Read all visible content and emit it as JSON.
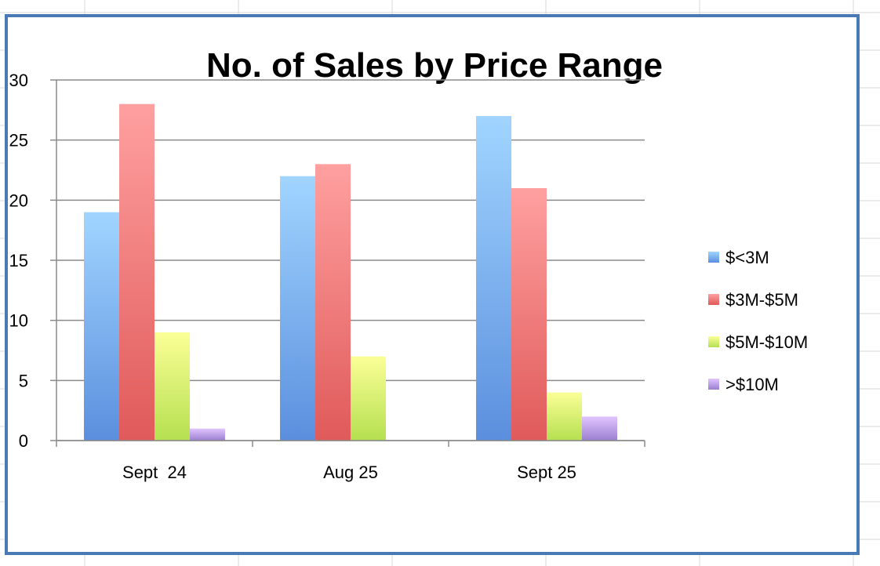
{
  "chart_data": {
    "type": "bar",
    "title": "No. of Sales by Price Range",
    "xlabel": "",
    "ylabel": "",
    "categories": [
      "Sept  24",
      "Aug 25",
      "Sept 25"
    ],
    "series": [
      {
        "name": "$<3M",
        "values": [
          19,
          22,
          27
        ],
        "color": "#5b8fde"
      },
      {
        "name": "$3M-$5M",
        "values": [
          28,
          23,
          21
        ],
        "color": "#e05a5a"
      },
      {
        "name": "$5M-$10M",
        "values": [
          9,
          7,
          4
        ],
        "color": "#b5e050"
      },
      {
        "name": ">$10M",
        "values": [
          1,
          0,
          2
        ],
        "color": "#9b7fd0"
      }
    ],
    "ylim": [
      0,
      30
    ],
    "yticks": [
      "0",
      "5",
      "10",
      "15",
      "20",
      "25",
      "30"
    ],
    "grid": true,
    "legend_position": "right"
  }
}
